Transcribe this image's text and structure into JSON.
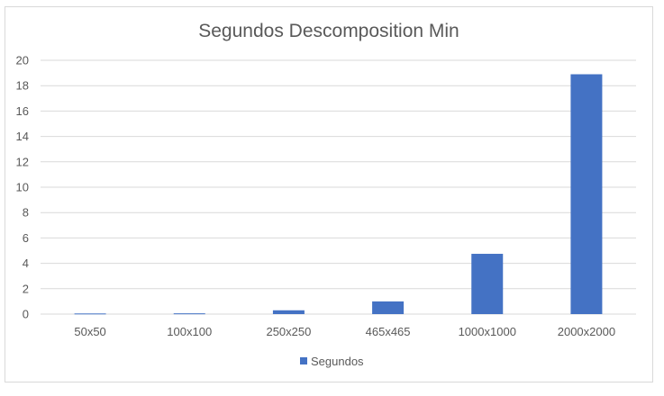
{
  "chart_data": {
    "type": "bar",
    "title": "Segundos Descomposition Min",
    "xlabel": "",
    "ylabel": "",
    "categories": [
      "50x50",
      "100x100",
      "250x250",
      "465x465",
      "1000x1000",
      "2000x2000"
    ],
    "series": [
      {
        "name": "Segundos",
        "values": [
          0.05,
          0.06,
          0.3,
          1.0,
          4.75,
          18.9
        ]
      }
    ],
    "ylim": [
      0,
      20
    ],
    "yticks": [
      "0",
      "2",
      "4",
      "6",
      "8",
      "10",
      "12",
      "14",
      "16",
      "18",
      "20"
    ],
    "grid": true,
    "legend_position": "bottom",
    "bar_color": "#4472c4",
    "grid_color": "#d9d9d9"
  }
}
